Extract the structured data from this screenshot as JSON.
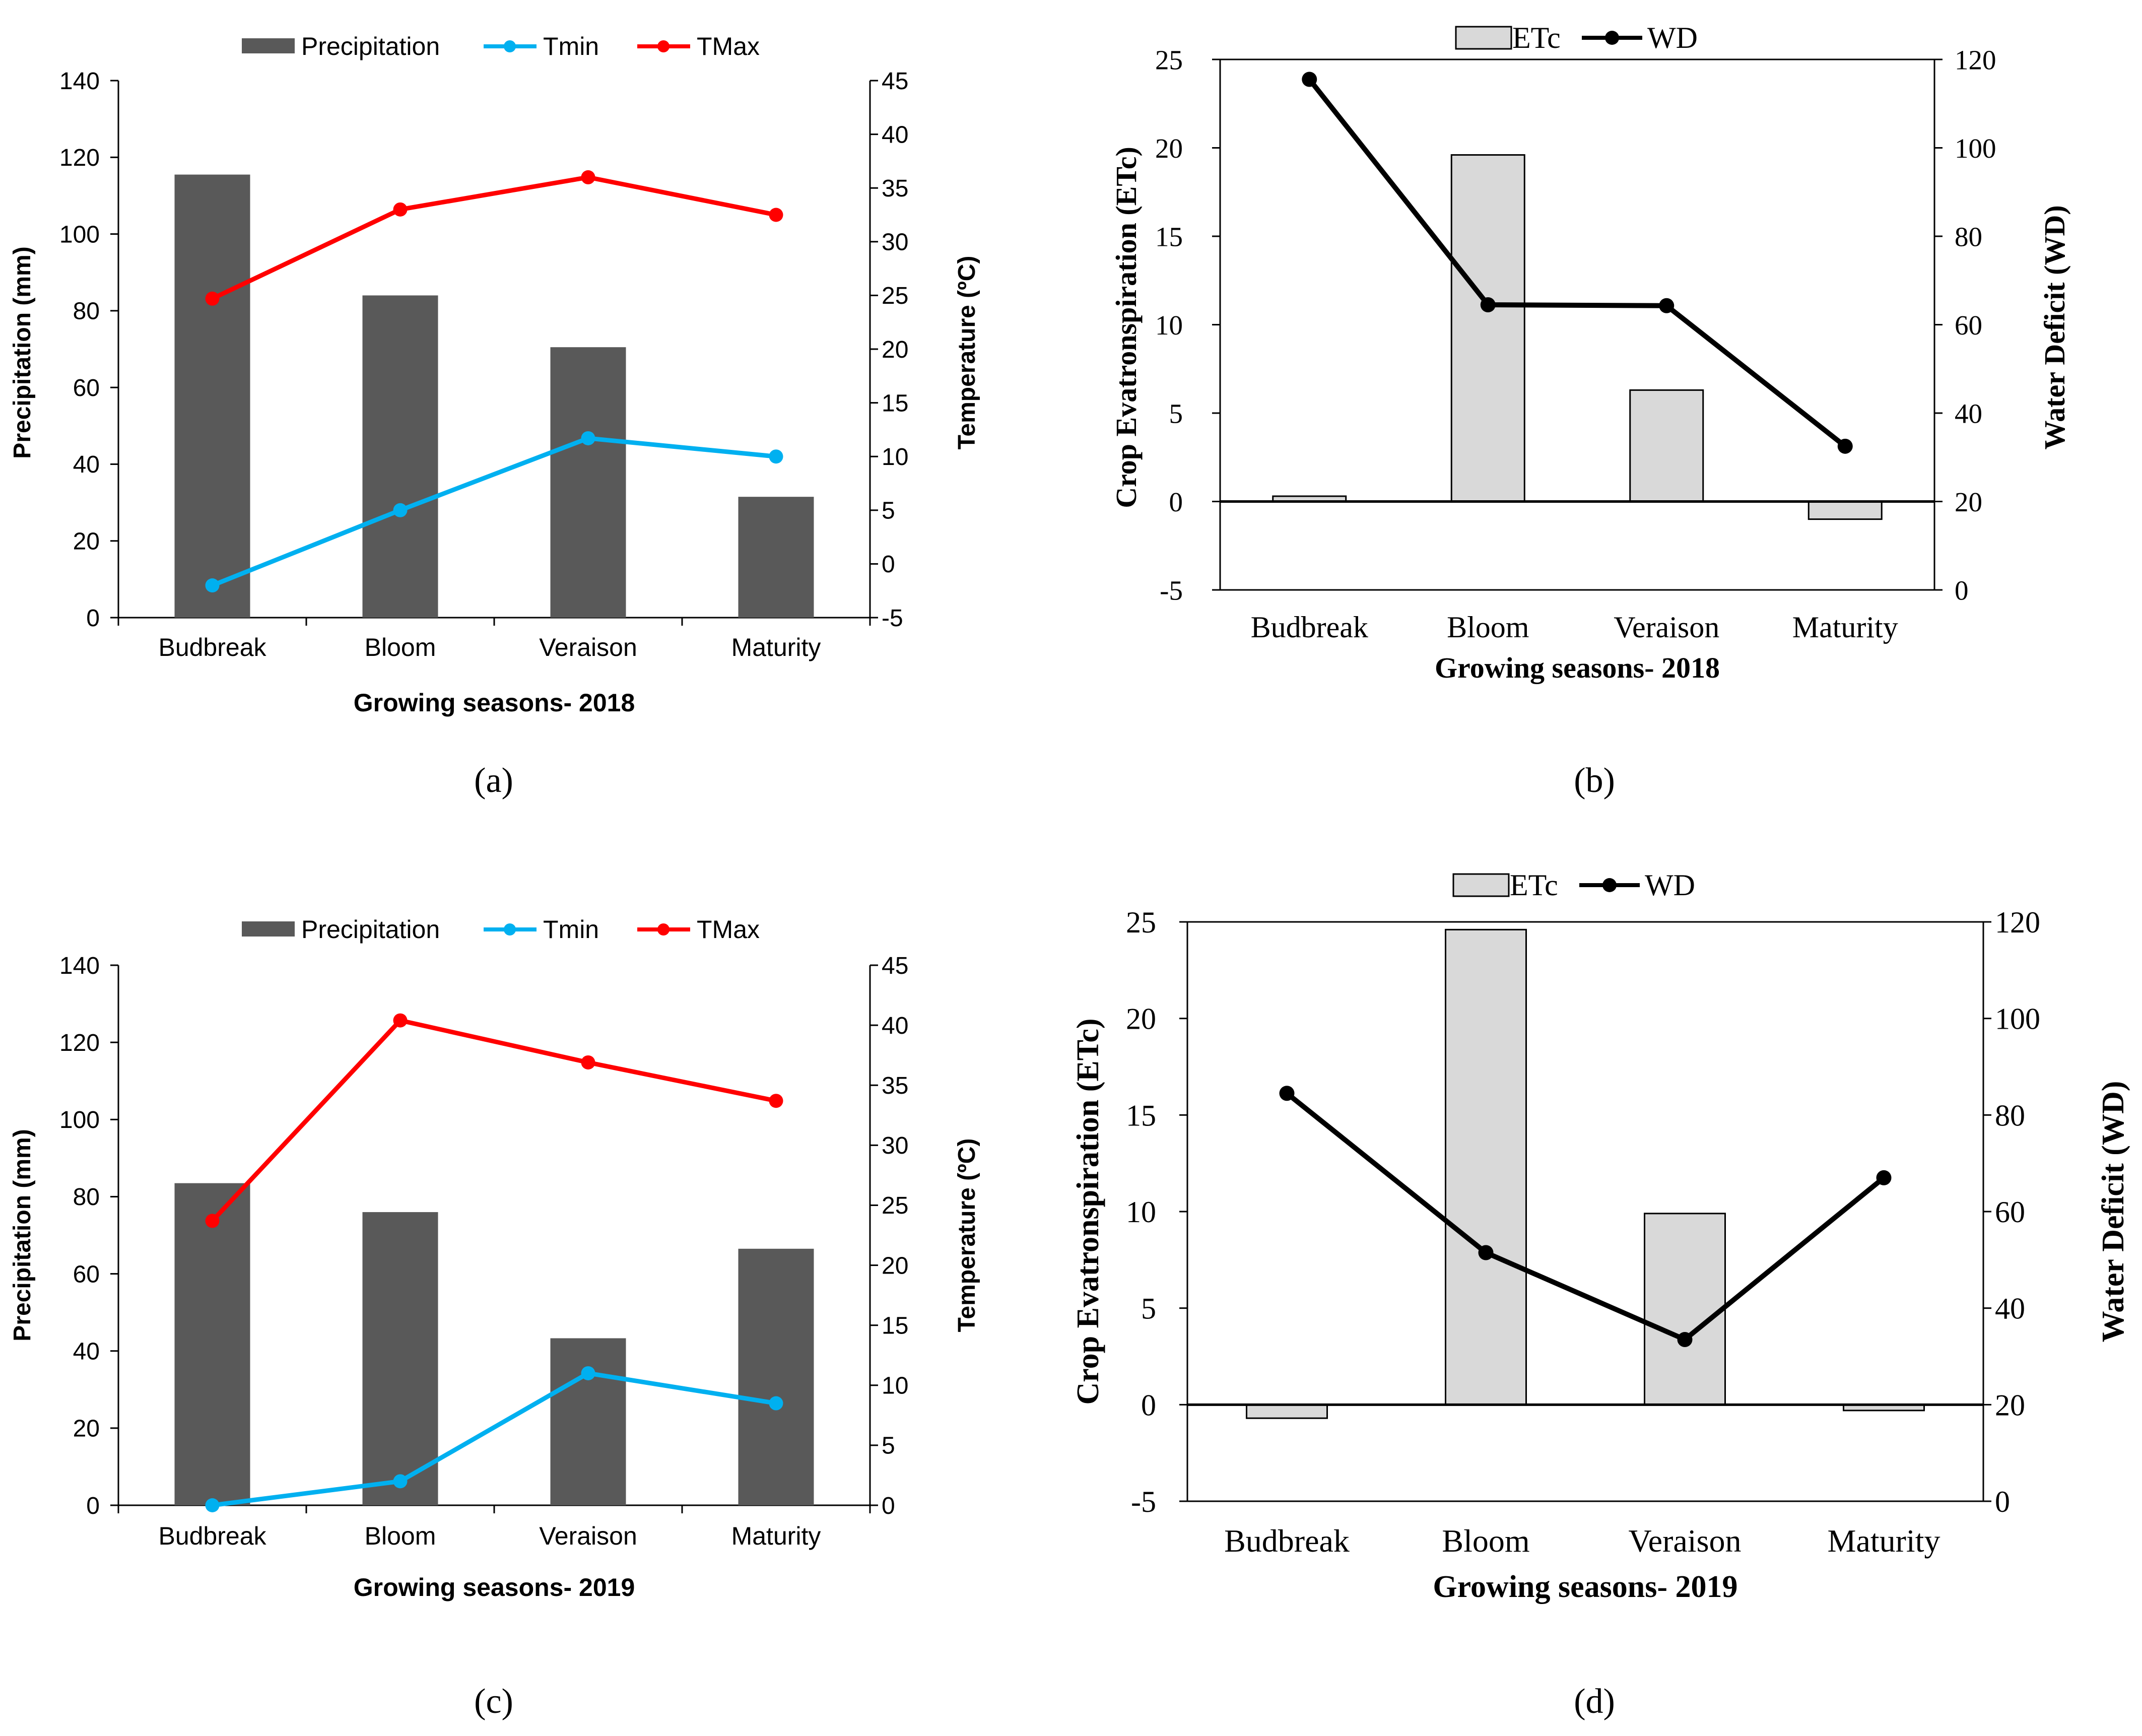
{
  "figure": {
    "panels": [
      "(a)",
      "(b)",
      "(c)",
      "(d)"
    ]
  },
  "colors": {
    "precip_bar": "#595959",
    "tmin": "#00B0F0",
    "tmax": "#FF0000",
    "etc_bar": "#D9D9D9",
    "wd": "#000000",
    "axis": "#000000"
  },
  "chart_data": [
    {
      "id": "a",
      "type": "bar+line",
      "panel_label": "(a)",
      "categories": [
        "Budbreak",
        "Bloom",
        "Veraison",
        "Maturity"
      ],
      "xlabel": "Growing seasons- 2018",
      "ylabel_left": "Precipitation (mm)",
      "ylabel_right": "Temperature (ºC)",
      "ylim_left": [
        0,
        140
      ],
      "yticks_left": [
        0,
        20,
        40,
        60,
        80,
        100,
        120,
        140
      ],
      "ylim_right": [
        -5,
        45
      ],
      "yticks_right": [
        -5,
        0,
        5,
        10,
        15,
        20,
        25,
        30,
        35,
        40,
        45
      ],
      "legend": [
        "Precipitation",
        "Tmin",
        "TMax"
      ],
      "bars": {
        "name": "Precipitation",
        "values": [
          115.5,
          84,
          70.5,
          31.5
        ]
      },
      "lines": [
        {
          "name": "Tmin",
          "values": [
            -2,
            5,
            11.7,
            10
          ]
        },
        {
          "name": "TMax",
          "values": [
            24.7,
            33,
            36,
            32.5
          ]
        }
      ]
    },
    {
      "id": "b",
      "type": "bar+line",
      "panel_label": "(b)",
      "categories": [
        "Budbreak",
        "Bloom",
        "Veraison",
        "Maturity"
      ],
      "xlabel": "Growing seasons- 2018",
      "ylabel_left": "Crop Evatronspiration (ETc)",
      "ylabel_right": "Water Deficit (WD)",
      "ylim_left": [
        -5,
        25
      ],
      "yticks_left": [
        -5,
        0,
        5,
        10,
        15,
        20,
        25
      ],
      "ylim_right": [
        0,
        120
      ],
      "yticks_right": [
        0,
        20,
        40,
        60,
        80,
        100,
        120
      ],
      "legend": [
        "ETc",
        "WD"
      ],
      "bars": {
        "name": "ETc",
        "values": [
          0.3,
          19.6,
          6.3,
          -1.0
        ]
      },
      "lines": [
        {
          "name": "WD",
          "values": [
            115.5,
            64.5,
            64.3,
            32.5
          ]
        }
      ]
    },
    {
      "id": "c",
      "type": "bar+line",
      "panel_label": "(c)",
      "categories": [
        "Budbreak",
        "Bloom",
        "Veraison",
        "Maturity"
      ],
      "xlabel": "Growing seasons- 2019",
      "ylabel_left": "Precipitation (mm)",
      "ylabel_right": "Temperature (ºC)",
      "ylim_left": [
        0,
        140
      ],
      "yticks_left": [
        0,
        20,
        40,
        60,
        80,
        100,
        120,
        140
      ],
      "ylim_right": [
        0,
        45
      ],
      "yticks_right": [
        0,
        5,
        10,
        15,
        20,
        25,
        30,
        35,
        40,
        45
      ],
      "legend": [
        "Precipitation",
        "Tmin",
        "TMax"
      ],
      "bars": {
        "name": "Precipitation",
        "values": [
          83.5,
          76,
          43.3,
          66.5
        ]
      },
      "lines": [
        {
          "name": "Tmin",
          "values": [
            0,
            2,
            11,
            8.5
          ]
        },
        {
          "name": "TMax",
          "values": [
            23.7,
            40.4,
            36.9,
            33.7
          ]
        }
      ]
    },
    {
      "id": "d",
      "type": "bar+line",
      "panel_label": "(d)",
      "categories": [
        "Budbreak",
        "Bloom",
        "Veraison",
        "Maturity"
      ],
      "xlabel": "Growing seasons- 2019",
      "ylabel_left": "Crop Evatronspiration (ETc)",
      "ylabel_right": "Water Deficit (WD)",
      "ylim_left": [
        -5,
        25
      ],
      "yticks_left": [
        -5,
        0,
        5,
        10,
        15,
        20,
        25
      ],
      "ylim_right": [
        0,
        120
      ],
      "yticks_right": [
        0,
        20,
        40,
        60,
        80,
        100,
        120
      ],
      "legend": [
        "ETc",
        "WD"
      ],
      "bars": {
        "name": "ETc",
        "values": [
          -0.7,
          24.6,
          9.9,
          -0.3
        ]
      },
      "lines": [
        {
          "name": "WD",
          "values": [
            84.5,
            51.5,
            33.5,
            67
          ]
        }
      ]
    }
  ]
}
